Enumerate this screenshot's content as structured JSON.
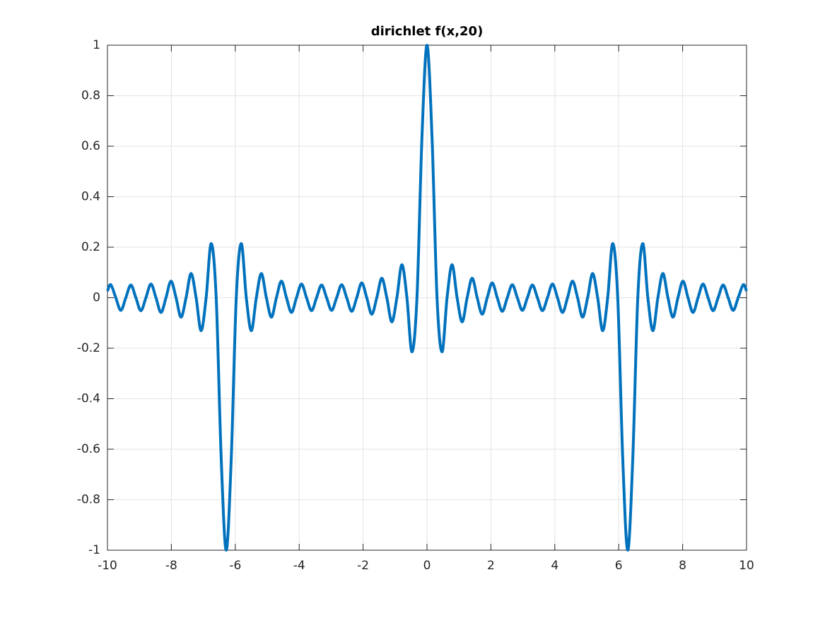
{
  "chart_data": {
    "type": "line",
    "title": "dirichlet f(x,20)",
    "x": [
      -10,
      -9.896,
      -9.739,
      -9.582,
      -9.425,
      -9.268,
      -9.111,
      -8.954,
      -8.796,
      -8.639,
      -8.482,
      -8.325,
      -8.168,
      -8.011,
      -7.854,
      -7.697,
      -7.54,
      -7.383,
      -7.226,
      -7.069,
      -6.912,
      -6.754,
      -6.597,
      -6.44,
      -6.283,
      -6.126,
      -5.969,
      -5.812,
      -5.655,
      -5.498,
      -5.341,
      -5.184,
      -5.027,
      -4.869,
      -4.712,
      -4.555,
      -4.398,
      -4.241,
      -4.084,
      -3.927,
      -3.77,
      -3.613,
      -3.456,
      -3.299,
      -3.142,
      -2.985,
      -2.827,
      -2.67,
      -2.513,
      -2.356,
      -2.199,
      -2.042,
      -1.885,
      -1.728,
      -1.571,
      -1.414,
      -1.257,
      -1.1,
      -0.942,
      -0.785,
      -0.628,
      -0.471,
      -0.314,
      -0.157,
      0,
      0.157,
      0.314,
      0.471,
      0.628,
      0.785,
      0.942,
      1.1,
      1.257,
      1.414,
      1.571,
      1.728,
      1.885,
      2.042,
      2.199,
      2.356,
      2.513,
      2.67,
      2.827,
      2.985,
      3.142,
      3.299,
      3.456,
      3.613,
      3.77,
      3.927,
      4.084,
      4.241,
      4.398,
      4.555,
      4.712,
      4.869,
      5.027,
      5.184,
      5.341,
      5.498,
      5.655,
      5.812,
      5.969,
      6.126,
      6.283,
      6.44,
      6.597,
      6.754,
      6.912,
      7.069,
      7.226,
      7.383,
      7.54,
      7.697,
      7.854,
      8.011,
      8.168,
      8.325,
      8.482,
      8.639,
      8.796,
      8.954,
      9.111,
      9.268,
      9.425,
      9.582,
      9.739,
      9.896,
      10
    ],
    "values": [
      0.0264,
      0.0514,
      0,
      -0.0502,
      0,
      0.0502,
      0,
      -0.0514,
      0,
      0.0541,
      0,
      -0.0586,
      0,
      0.0658,
      0,
      -0.077,
      0,
      0.0957,
      0,
      -0.1307,
      0,
      0.2142,
      0,
      -0.6373,
      -1,
      -0.6373,
      0,
      0.2142,
      0,
      -0.1307,
      0,
      0.0957,
      0,
      -0.077,
      0,
      0.0658,
      0,
      -0.0586,
      0,
      0.0541,
      0,
      -0.0514,
      0,
      0.0502,
      0,
      -0.0502,
      0,
      0.0514,
      0,
      -0.0541,
      0,
      0.0586,
      0,
      -0.0658,
      0,
      0.077,
      0,
      -0.0957,
      0,
      0.1307,
      0,
      -0.2142,
      0,
      0.6373,
      1,
      0.6373,
      0,
      -0.2142,
      0,
      0.1307,
      0,
      -0.0957,
      0,
      0.077,
      0,
      -0.0658,
      0,
      0.0586,
      0,
      -0.0541,
      0,
      0.0514,
      0,
      -0.0502,
      0,
      0.0502,
      0,
      -0.0514,
      0,
      0.0541,
      0,
      -0.0586,
      0,
      0.0658,
      0,
      -0.077,
      0,
      0.0957,
      0,
      -0.1307,
      0,
      0.2142,
      0,
      -0.6373,
      -1,
      -0.6373,
      0,
      0.2142,
      0,
      -0.1307,
      0,
      0.0957,
      0,
      -0.077,
      0,
      0.0658,
      0,
      -0.0586,
      0,
      0.0541,
      0,
      -0.0514,
      0,
      0.0502,
      0,
      -0.0502,
      0,
      0.0514,
      0.0264
    ],
    "color": "#0072bd",
    "xlim": [
      -10,
      10
    ],
    "ylim": [
      -1,
      1
    ],
    "xticks": [
      -10,
      -8,
      -6,
      -4,
      -2,
      0,
      2,
      4,
      6,
      8,
      10
    ],
    "yticks": [
      -1,
      -0.8,
      -0.6,
      -0.4,
      -0.2,
      0,
      0.2,
      0.4,
      0.6,
      0.8,
      1
    ],
    "grid": true
  }
}
